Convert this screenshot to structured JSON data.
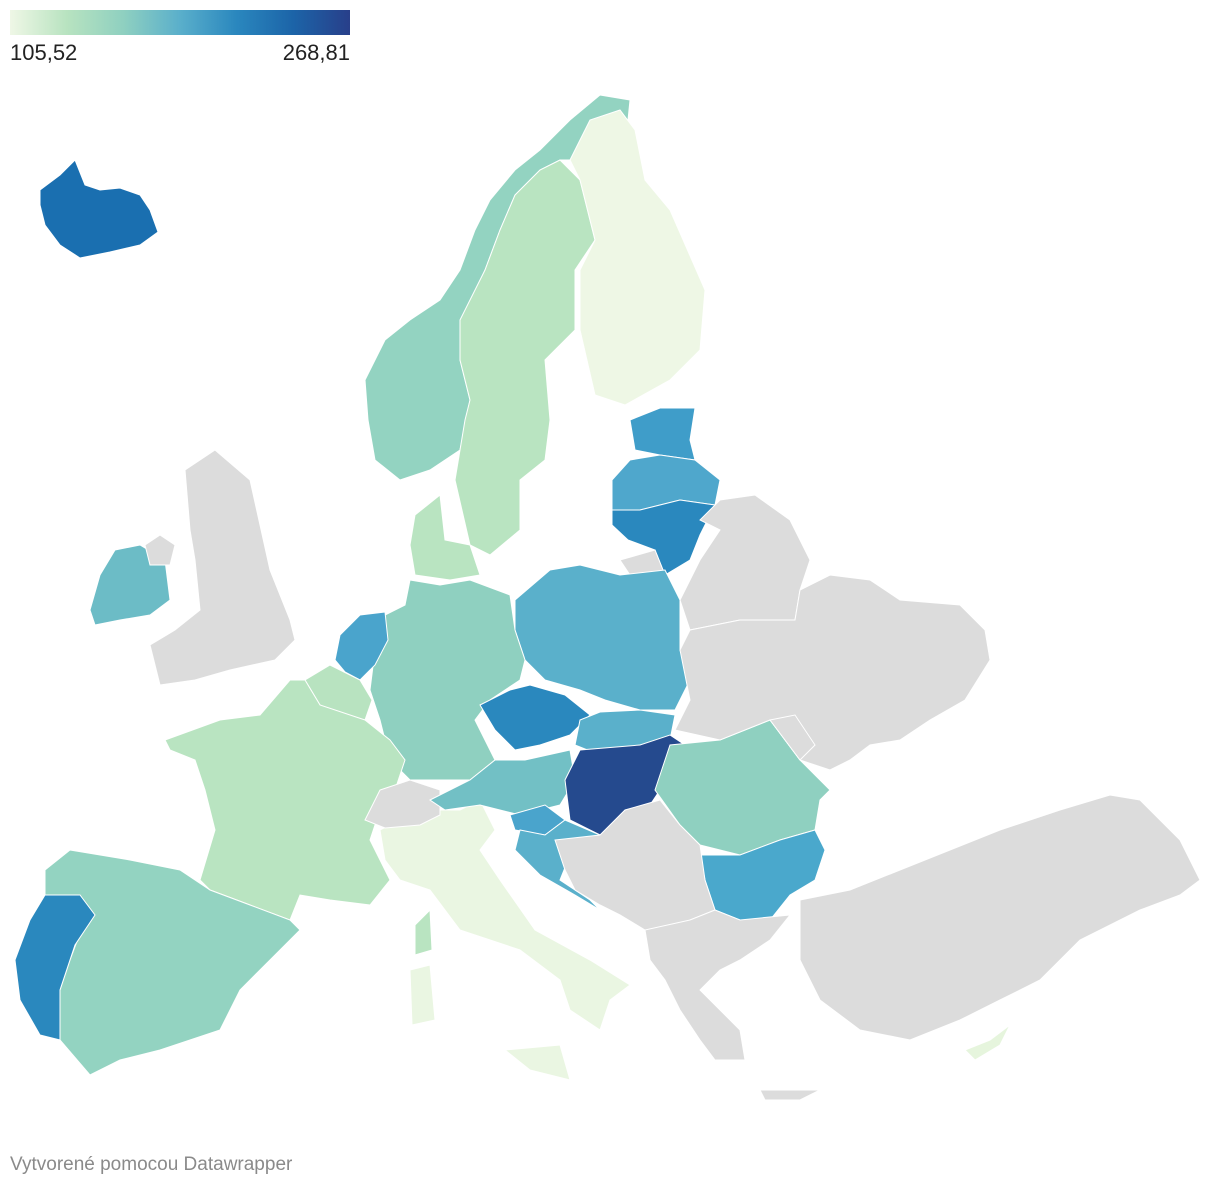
{
  "legend": {
    "min": {
      "value": 105.52,
      "label": "105,52"
    },
    "max": {
      "value": 268.81,
      "label": "268,81"
    },
    "colors": [
      "#eff7e6",
      "#b8e3c0",
      "#8fd0c0",
      "#5aafcb",
      "#2a87be",
      "#1c64a8",
      "#283f8a"
    ]
  },
  "footer": "Vytvorené pomocou Datawrapper"
}
